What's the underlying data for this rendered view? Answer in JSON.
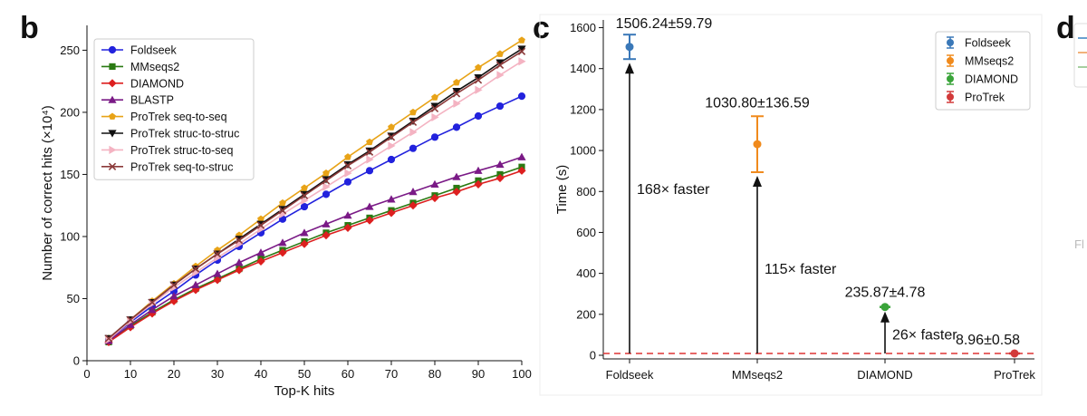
{
  "panels": {
    "b": "b",
    "c": "c",
    "d": "d",
    "d_fragment": "Fl"
  },
  "chart_data": [
    {
      "type": "line",
      "panel": "b",
      "xlabel": "Top-K hits",
      "ylabel": "Number of correct hits (×10⁴)",
      "xlim": [
        0,
        100
      ],
      "ylim": [
        0,
        270
      ],
      "xticks": [
        0,
        10,
        20,
        30,
        40,
        50,
        60,
        70,
        80,
        90,
        100
      ],
      "yticks": [
        0,
        50,
        100,
        150,
        200,
        250
      ],
      "grid": false,
      "legend_position": "top-left",
      "x": [
        5,
        10,
        15,
        20,
        25,
        30,
        35,
        40,
        45,
        50,
        55,
        60,
        65,
        70,
        75,
        80,
        85,
        90,
        95,
        100
      ],
      "series": [
        {
          "name": "Foldseek",
          "color": "#2222dd",
          "marker": "circle",
          "values": [
            17,
            31,
            44,
            56,
            69,
            81,
            92,
            103,
            114,
            124,
            134,
            144,
            153,
            162,
            171,
            180,
            188,
            197,
            205,
            213
          ]
        },
        {
          "name": "MMseqs2",
          "color": "#2a7a12",
          "marker": "square",
          "values": [
            15,
            28,
            39,
            49,
            58,
            66,
            74,
            82,
            89,
            96,
            103,
            109,
            115,
            121,
            127,
            133,
            139,
            145,
            150,
            156
          ]
        },
        {
          "name": "DIAMOND",
          "color": "#dd1f1f",
          "marker": "diamond",
          "values": [
            15,
            27,
            38,
            48,
            57,
            65,
            73,
            80,
            87,
            94,
            101,
            107,
            113,
            119,
            125,
            131,
            136,
            142,
            147,
            153
          ]
        },
        {
          "name": "BLASTP",
          "color": "#7a1a86",
          "marker": "triangle-up",
          "values": [
            16,
            29,
            41,
            52,
            61,
            70,
            79,
            87,
            95,
            103,
            110,
            117,
            124,
            130,
            136,
            142,
            148,
            153,
            158,
            164
          ]
        },
        {
          "name": "ProTrek seq-to-seq",
          "color": "#e8a317",
          "marker": "pentagon",
          "values": [
            18,
            33,
            48,
            62,
            76,
            89,
            101,
            114,
            127,
            139,
            151,
            164,
            176,
            188,
            200,
            212,
            224,
            236,
            247,
            258
          ]
        },
        {
          "name": "ProTrek struc-to-struc",
          "color": "#111111",
          "marker": "triangle-down",
          "values": [
            18,
            33,
            47,
            61,
            74,
            86,
            98,
            110,
            122,
            134,
            146,
            158,
            169,
            181,
            193,
            205,
            217,
            228,
            240,
            251
          ]
        },
        {
          "name": "ProTrek struc-to-seq",
          "color": "#f4b3c2",
          "marker": "triangle-right",
          "values": [
            17,
            32,
            46,
            59,
            71,
            83,
            94,
            106,
            118,
            129,
            140,
            151,
            162,
            173,
            184,
            196,
            207,
            218,
            230,
            241
          ]
        },
        {
          "name": "ProTrek seq-to-struc",
          "color": "#8b3a3a",
          "marker": "x",
          "values": [
            18,
            33,
            47,
            61,
            74,
            86,
            97,
            109,
            121,
            133,
            145,
            157,
            168,
            180,
            192,
            203,
            215,
            226,
            238,
            249
          ]
        }
      ]
    },
    {
      "type": "scatter",
      "panel": "c",
      "ylabel": "Time (s)",
      "ylim": [
        0,
        1620
      ],
      "yticks": [
        0,
        200,
        400,
        600,
        800,
        1000,
        1200,
        1400,
        1600
      ],
      "categories": [
        "Foldseek",
        "MMseqs2",
        "DIAMOND",
        "ProTrek"
      ],
      "grid": false,
      "legend_position": "top-right",
      "reference_line": {
        "y": 8.96,
        "color": "#dd3333",
        "style": "dashed"
      },
      "points": [
        {
          "name": "Foldseek",
          "mean": 1506.24,
          "err": 59.79,
          "label": "1506.24±59.79",
          "color": "#3a78b8"
        },
        {
          "name": "MMseqs2",
          "mean": 1030.8,
          "err": 136.59,
          "label": "1030.80±136.59",
          "color": "#f08a1c"
        },
        {
          "name": "DIAMOND",
          "mean": 235.87,
          "err": 4.78,
          "label": "235.87±4.78",
          "color": "#3aa43a"
        },
        {
          "name": "ProTrek",
          "mean": 8.96,
          "err": 0.58,
          "label": "8.96±0.58",
          "color": "#d23a3a"
        }
      ],
      "arrows": [
        {
          "category": "Foldseek",
          "label": "168× faster",
          "label_y": 810
        },
        {
          "category": "MMseqs2",
          "label": "115× faster",
          "label_y": 420
        },
        {
          "category": "DIAMOND",
          "label": "26× faster",
          "label_y": 100
        }
      ]
    }
  ]
}
